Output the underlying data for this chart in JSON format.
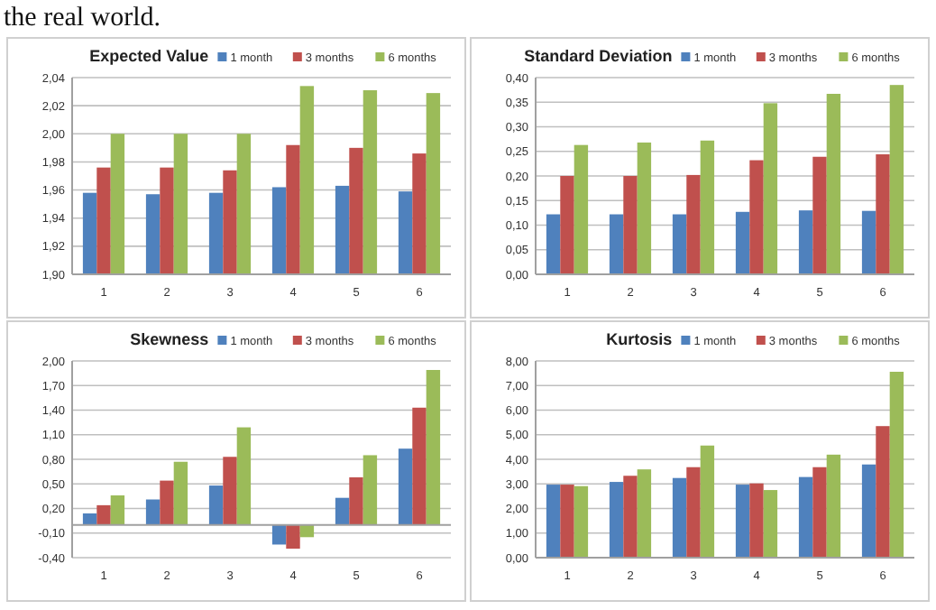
{
  "chart_data": [
    {
      "type": "bar",
      "title": "Expected Value",
      "annotations": [
        "the real world."
      ],
      "categories": [
        "1",
        "2",
        "3",
        "4",
        "5",
        "6"
      ],
      "series": [
        {
          "name": "1 month",
          "color": "#4f81bd",
          "values": [
            1.958,
            1.957,
            1.958,
            1.962,
            1.963,
            1.959
          ]
        },
        {
          "name": "3 months",
          "color": "#c0504d",
          "values": [
            1.976,
            1.976,
            1.974,
            1.992,
            1.99,
            1.986
          ]
        },
        {
          "name": "6 months",
          "color": "#9bbb59",
          "values": [
            2.0,
            2.0,
            2.0,
            2.034,
            2.031,
            2.029
          ]
        }
      ],
      "ylim": [
        1.9,
        2.04
      ],
      "yticks": [
        {
          "value": 1.9,
          "label": "1,90"
        },
        {
          "value": 1.92,
          "label": "1,92"
        },
        {
          "value": 1.94,
          "label": "1,94"
        },
        {
          "value": 1.96,
          "label": "1,96"
        },
        {
          "value": 1.98,
          "label": "1,98"
        },
        {
          "value": 2.0,
          "label": "2,00"
        },
        {
          "value": 2.02,
          "label": "2,02"
        },
        {
          "value": 2.04,
          "label": "2,04"
        }
      ],
      "grid": "y",
      "legend": "top right"
    },
    {
      "type": "bar",
      "title": "Standard Deviation",
      "categories": [
        "1",
        "2",
        "3",
        "4",
        "5",
        "6"
      ],
      "series": [
        {
          "name": "1 month",
          "color": "#4f81bd",
          "values": [
            0.122,
            0.122,
            0.122,
            0.127,
            0.13,
            0.129
          ]
        },
        {
          "name": "3 months",
          "color": "#c0504d",
          "values": [
            0.2,
            0.2,
            0.202,
            0.232,
            0.239,
            0.244
          ]
        },
        {
          "name": "6 months",
          "color": "#9bbb59",
          "values": [
            0.263,
            0.268,
            0.272,
            0.348,
            0.367,
            0.385
          ]
        }
      ],
      "ylim": [
        0,
        0.4
      ],
      "yticks": [
        {
          "value": 0,
          "label": "0,00"
        },
        {
          "value": 0.05,
          "label": "0,05"
        },
        {
          "value": 0.1,
          "label": "0,10"
        },
        {
          "value": 0.15,
          "label": "0,15"
        },
        {
          "value": 0.2,
          "label": "0,20"
        },
        {
          "value": 0.25,
          "label": "0,25"
        },
        {
          "value": 0.3,
          "label": "0,30"
        },
        {
          "value": 0.35,
          "label": "0,35"
        },
        {
          "value": 0.4,
          "label": "0,40"
        }
      ],
      "grid": "y",
      "legend": "top right"
    },
    {
      "type": "bar",
      "title": "Skewness",
      "categories": [
        "1",
        "2",
        "3",
        "4",
        "5",
        "6"
      ],
      "series": [
        {
          "name": "1 month",
          "color": "#4f81bd",
          "values": [
            0.14,
            0.31,
            0.48,
            -0.24,
            0.33,
            0.93
          ]
        },
        {
          "name": "3 months",
          "color": "#c0504d",
          "values": [
            0.24,
            0.54,
            0.83,
            -0.29,
            0.58,
            1.43
          ]
        },
        {
          "name": "6 months",
          "color": "#9bbb59",
          "values": [
            0.36,
            0.77,
            1.19,
            -0.15,
            0.85,
            1.89
          ]
        }
      ],
      "ylim": [
        -0.4,
        2.0
      ],
      "yticks": [
        {
          "value": -0.4,
          "label": "-0,40"
        },
        {
          "value": -0.1,
          "label": "-0,10"
        },
        {
          "value": 0.2,
          "label": "0,20"
        },
        {
          "value": 0.5,
          "label": "0,50"
        },
        {
          "value": 0.8,
          "label": "0,80"
        },
        {
          "value": 1.1,
          "label": "1,10"
        },
        {
          "value": 1.4,
          "label": "1,40"
        },
        {
          "value": 1.7,
          "label": "1,70"
        },
        {
          "value": 2.0,
          "label": "2,00"
        }
      ],
      "grid": "y",
      "legend": "top right"
    },
    {
      "type": "bar",
      "title": "Kurtosis",
      "categories": [
        "1",
        "2",
        "3",
        "4",
        "5",
        "6"
      ],
      "series": [
        {
          "name": "1 month",
          "color": "#4f81bd",
          "values": [
            2.97,
            3.08,
            3.24,
            2.97,
            3.28,
            3.79
          ]
        },
        {
          "name": "3 months",
          "color": "#c0504d",
          "values": [
            2.97,
            3.33,
            3.68,
            3.02,
            3.68,
            5.35
          ]
        },
        {
          "name": "6 months",
          "color": "#9bbb59",
          "values": [
            2.91,
            3.59,
            4.56,
            2.75,
            4.19,
            7.56
          ]
        }
      ],
      "ylim": [
        0,
        8
      ],
      "yticks": [
        {
          "value": 0,
          "label": "0,00"
        },
        {
          "value": 1,
          "label": "1,00"
        },
        {
          "value": 2,
          "label": "2,00"
        },
        {
          "value": 3,
          "label": "3,00"
        },
        {
          "value": 4,
          "label": "4,00"
        },
        {
          "value": 5,
          "label": "5,00"
        },
        {
          "value": 6,
          "label": "6,00"
        },
        {
          "value": 7,
          "label": "7,00"
        },
        {
          "value": 8,
          "label": "8,00"
        }
      ],
      "grid": "y",
      "legend": "top right"
    }
  ]
}
